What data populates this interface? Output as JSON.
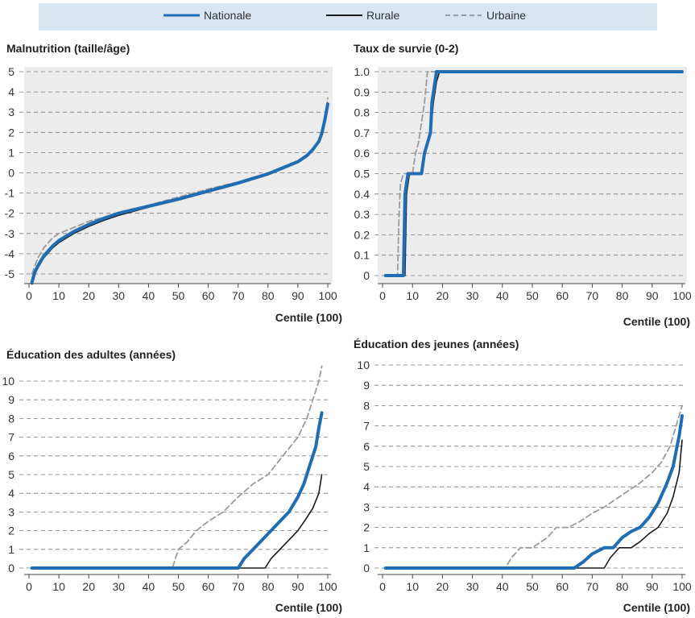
{
  "legend": {
    "items": [
      {
        "label": "Nationale",
        "color": "#1f6db5",
        "dash": "solid"
      },
      {
        "label": "Rurale",
        "color": "#1a1a1a",
        "dash": "solid"
      },
      {
        "label": "Urbaine",
        "color": "#9a9a9a",
        "dash": "dashed"
      }
    ]
  },
  "chart_data": [
    {
      "type": "line",
      "title": "Malnutrition (taille/âge)",
      "xlabel": "Centile (100)",
      "ylabel": "",
      "xlim": [
        0,
        100
      ],
      "ylim": [
        -5.5,
        5
      ],
      "xticks": [
        0,
        10,
        20,
        30,
        40,
        50,
        60,
        70,
        80,
        90,
        100
      ],
      "yticks": [
        5,
        4,
        3,
        2,
        1,
        0,
        -1,
        -2,
        -3,
        -4,
        -5
      ],
      "ytick_labels": [
        "5",
        "4",
        "3",
        "2",
        "1",
        "0",
        "-1",
        "-2",
        "-3",
        "-4",
        "-5"
      ],
      "grid": true,
      "series": [
        {
          "name": "Urbaine",
          "color": "#9a9a9a",
          "dash": "dashed",
          "x": [
            1,
            2,
            3,
            5,
            8,
            10,
            15,
            20,
            25,
            30,
            40,
            50,
            60,
            70,
            80,
            85,
            90,
            93,
            95,
            97,
            98,
            99,
            100
          ],
          "y": [
            -5.0,
            -4.6,
            -4.2,
            -3.7,
            -3.2,
            -3.0,
            -2.7,
            -2.4,
            -2.2,
            -1.95,
            -1.6,
            -1.2,
            -0.8,
            -0.45,
            0.0,
            0.3,
            0.6,
            0.9,
            1.2,
            1.6,
            2.0,
            2.7,
            3.7
          ]
        },
        {
          "name": "Rurale",
          "color": "#1a1a1a",
          "dash": "solid",
          "x": [
            1,
            2,
            3,
            5,
            8,
            10,
            15,
            20,
            25,
            30,
            40,
            50,
            60,
            70,
            80,
            85,
            90,
            93,
            95,
            97,
            98,
            99,
            100
          ],
          "y": [
            -5.5,
            -5.0,
            -4.7,
            -4.2,
            -3.7,
            -3.45,
            -3.0,
            -2.65,
            -2.35,
            -2.1,
            -1.7,
            -1.35,
            -0.95,
            -0.55,
            -0.1,
            0.2,
            0.5,
            0.8,
            1.1,
            1.5,
            1.9,
            2.5,
            3.3
          ]
        },
        {
          "name": "Nationale",
          "color": "#1f6db5",
          "dash": "solid",
          "x": [
            1,
            2,
            3,
            5,
            8,
            10,
            15,
            20,
            25,
            30,
            40,
            50,
            60,
            70,
            80,
            85,
            90,
            93,
            95,
            97,
            98,
            99,
            100
          ],
          "y": [
            -5.4,
            -4.9,
            -4.6,
            -4.1,
            -3.6,
            -3.35,
            -2.9,
            -2.55,
            -2.25,
            -2.0,
            -1.65,
            -1.3,
            -0.9,
            -0.5,
            -0.05,
            0.25,
            0.55,
            0.85,
            1.15,
            1.55,
            1.95,
            2.6,
            3.4
          ]
        }
      ]
    },
    {
      "type": "line",
      "title": "Taux de survie (0-2)",
      "xlabel": "Centile (100)",
      "ylabel": "",
      "xlim": [
        0,
        100
      ],
      "ylim": [
        0,
        1
      ],
      "xticks": [
        0,
        10,
        20,
        30,
        40,
        50,
        60,
        70,
        80,
        90,
        100
      ],
      "yticks": [
        1.0,
        0.9,
        0.8,
        0.7,
        0.6,
        0.5,
        0.4,
        0.3,
        0.2,
        0.1,
        0
      ],
      "ytick_labels": [
        "1.0",
        "0.9",
        "0.8",
        "0.7",
        "0.6",
        "0.5",
        "0.4",
        "0.3",
        "0.2",
        "0.1",
        "0"
      ],
      "grid": true,
      "series": [
        {
          "name": "Urbaine",
          "color": "#9a9a9a",
          "dash": "dashed",
          "x": [
            1,
            5,
            5.5,
            6,
            7,
            10,
            11,
            12,
            13,
            14,
            15,
            100
          ],
          "y": [
            0,
            0,
            0.3,
            0.45,
            0.5,
            0.5,
            0.6,
            0.65,
            0.75,
            0.85,
            1.0,
            1.0
          ]
        },
        {
          "name": "Rurale",
          "color": "#1a1a1a",
          "dash": "solid",
          "x": [
            1,
            7.5,
            8,
            9,
            13,
            14,
            15,
            16,
            17,
            18,
            19,
            100
          ],
          "y": [
            0,
            0,
            0.4,
            0.5,
            0.5,
            0.6,
            0.65,
            0.7,
            0.85,
            0.95,
            1.0,
            1.0
          ]
        },
        {
          "name": "Nationale",
          "color": "#1f6db5",
          "dash": "solid",
          "x": [
            1,
            7,
            7.5,
            8.5,
            13,
            14,
            15,
            16,
            16.5,
            17.5,
            18,
            100
          ],
          "y": [
            0,
            0,
            0.4,
            0.5,
            0.5,
            0.6,
            0.65,
            0.7,
            0.85,
            0.95,
            1.0,
            1.0
          ]
        }
      ]
    },
    {
      "type": "line",
      "title": "Éducation des adultes (années)",
      "xlabel": "Centile (100)",
      "ylabel": "",
      "xlim": [
        0,
        100
      ],
      "ylim": [
        0,
        10
      ],
      "xticks": [
        0,
        10,
        20,
        30,
        40,
        50,
        60,
        70,
        80,
        90,
        100
      ],
      "yticks": [
        10,
        9,
        8,
        7,
        6,
        5,
        4,
        3,
        2,
        1,
        0
      ],
      "ytick_labels": [
        "10",
        "9",
        "8",
        "7",
        "6",
        "5",
        "4",
        "3",
        "2",
        "1",
        "0"
      ],
      "grid": true,
      "series": [
        {
          "name": "Urbaine",
          "color": "#9a9a9a",
          "dash": "dashed",
          "x": [
            1,
            48,
            50,
            53,
            56,
            60,
            65,
            70,
            75,
            80,
            85,
            90,
            93,
            95,
            97,
            98
          ],
          "y": [
            0,
            0,
            1.0,
            1.4,
            2.0,
            2.5,
            3.0,
            3.8,
            4.5,
            5.0,
            6.0,
            7.0,
            8.0,
            9.0,
            10.0,
            10.8
          ]
        },
        {
          "name": "Rurale",
          "color": "#1a1a1a",
          "dash": "solid",
          "x": [
            1,
            79,
            81,
            84,
            87,
            90,
            93,
            95,
            97,
            98
          ],
          "y": [
            0,
            0,
            0.5,
            1.0,
            1.5,
            2.0,
            2.7,
            3.2,
            4.0,
            5.0
          ]
        },
        {
          "name": "Nationale",
          "color": "#1f6db5",
          "dash": "solid",
          "x": [
            1,
            70,
            72,
            75,
            78,
            81,
            84,
            87,
            90,
            92,
            94,
            96,
            97,
            98
          ],
          "y": [
            0,
            0,
            0.5,
            1.0,
            1.5,
            2.0,
            2.5,
            3.0,
            3.8,
            4.5,
            5.5,
            6.5,
            7.5,
            8.3
          ]
        }
      ]
    },
    {
      "type": "line",
      "title": "Éducation des jeunes (années)",
      "xlabel": "Centile (100)",
      "ylabel": "",
      "xlim": [
        0,
        100
      ],
      "ylim": [
        0,
        10
      ],
      "xticks": [
        0,
        10,
        20,
        30,
        40,
        50,
        60,
        70,
        80,
        90,
        100
      ],
      "yticks": [
        10,
        9,
        8,
        7,
        6,
        5,
        4,
        3,
        2,
        1,
        0
      ],
      "ytick_labels": [
        "10",
        "9",
        "8",
        "7",
        "6",
        "5",
        "4",
        "3",
        "2",
        "1",
        "0"
      ],
      "grid": true,
      "series": [
        {
          "name": "Urbaine",
          "color": "#9a9a9a",
          "dash": "dashed",
          "x": [
            1,
            41,
            43,
            46,
            50,
            55,
            58,
            62,
            66,
            70,
            74,
            78,
            82,
            86,
            90,
            93,
            96,
            98,
            100
          ],
          "y": [
            0,
            0,
            0.5,
            1.0,
            1.0,
            1.5,
            2.0,
            2.0,
            2.3,
            2.7,
            3.0,
            3.4,
            3.8,
            4.2,
            4.7,
            5.2,
            6.0,
            7.0,
            8.0
          ]
        },
        {
          "name": "Rurale",
          "color": "#1a1a1a",
          "dash": "solid",
          "x": [
            1,
            74,
            76,
            79,
            83,
            86,
            89,
            92,
            95,
            97,
            99,
            100
          ],
          "y": [
            0,
            0,
            0.5,
            1.0,
            1.0,
            1.3,
            1.7,
            2.0,
            2.7,
            3.5,
            4.7,
            6.3
          ]
        },
        {
          "name": "Nationale",
          "color": "#1f6db5",
          "dash": "solid",
          "x": [
            1,
            64,
            67,
            70,
            74,
            77,
            80,
            83,
            86,
            89,
            92,
            95,
            97,
            99,
            100
          ],
          "y": [
            0,
            0,
            0.3,
            0.7,
            1.0,
            1.0,
            1.5,
            1.8,
            2.0,
            2.5,
            3.2,
            4.2,
            5.0,
            6.5,
            7.5
          ]
        }
      ]
    }
  ]
}
